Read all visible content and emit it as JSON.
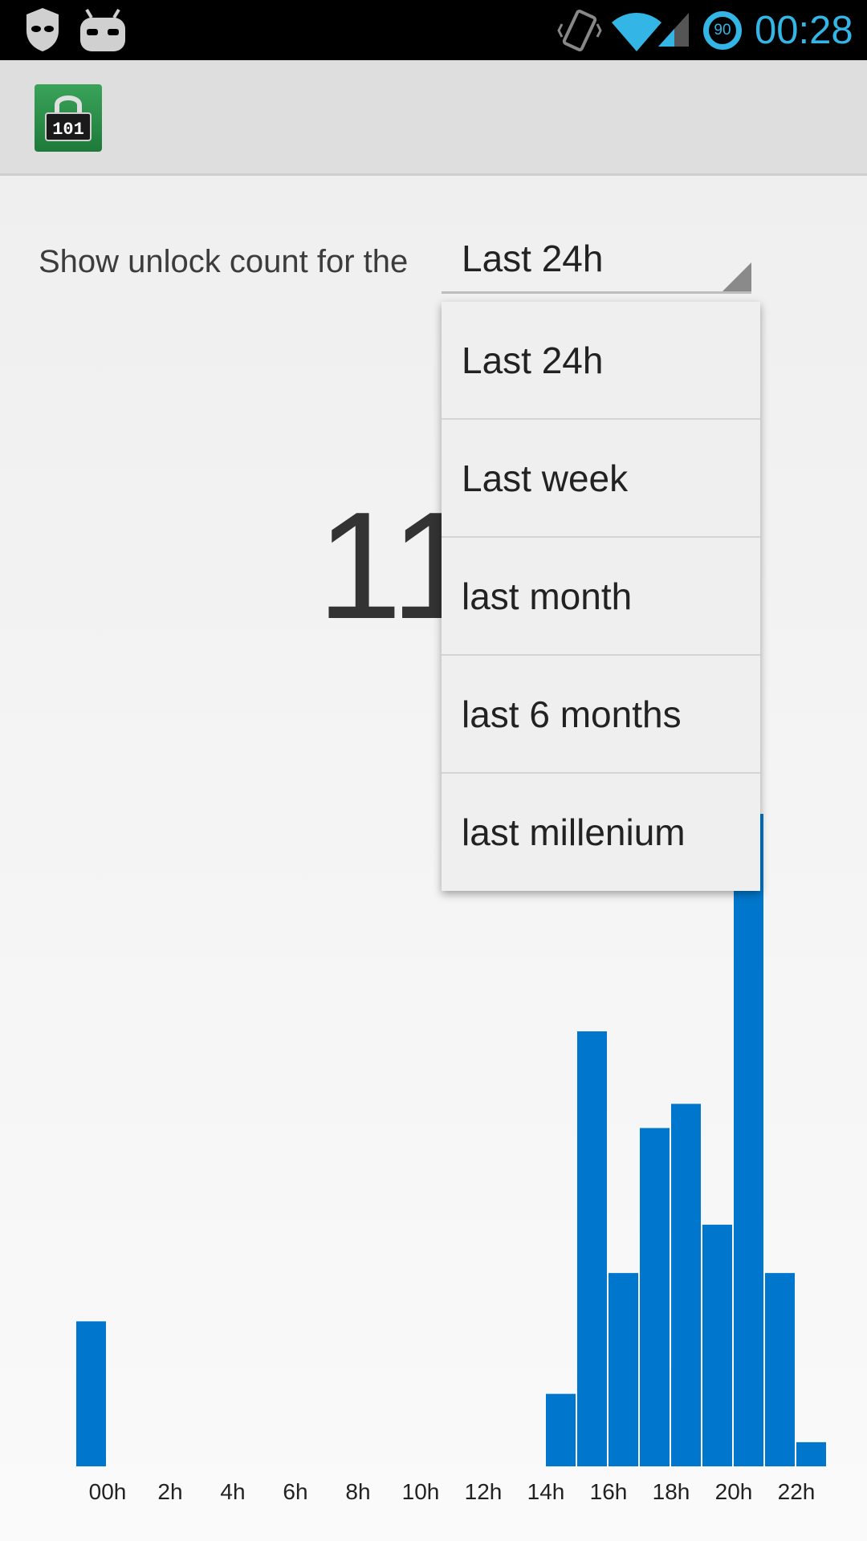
{
  "status_bar": {
    "time": "00:28",
    "battery_level": "90",
    "icons": [
      "cm-shield-icon",
      "cm-android-icon",
      "vibrate-icon",
      "wifi-icon",
      "signal-icon",
      "battery-icon"
    ],
    "accent_color": "#33b5e5"
  },
  "action_bar": {
    "app_icon": "lock-counter-app-icon",
    "app_icon_text": "101"
  },
  "main": {
    "prompt_label": "Show unlock count for the",
    "spinner_value": "Last 24h",
    "count_visible": "11"
  },
  "dropdown": {
    "options": [
      "Last 24h",
      "Last week",
      "last month",
      "last 6 months",
      "last millenium"
    ]
  },
  "chart_data": {
    "type": "bar",
    "bar_color": "#0077cc",
    "tick_labels": [
      "00h",
      "2h",
      "4h",
      "6h",
      "8h",
      "10h",
      "12h",
      "14h",
      "16h",
      "18h",
      "20h",
      "22h"
    ],
    "categories": [
      "0",
      "1",
      "2",
      "3",
      "4",
      "5",
      "6",
      "7",
      "8",
      "9",
      "10",
      "11",
      "12",
      "13",
      "14",
      "15",
      "16",
      "17",
      "18",
      "19",
      "20",
      "21",
      "22",
      "23"
    ],
    "values": [
      6,
      0,
      0,
      0,
      0,
      0,
      0,
      0,
      0,
      0,
      0,
      0,
      0,
      0,
      0,
      3,
      18,
      8,
      14,
      15,
      10,
      27,
      8,
      1
    ],
    "ylim": [
      0,
      27
    ]
  }
}
